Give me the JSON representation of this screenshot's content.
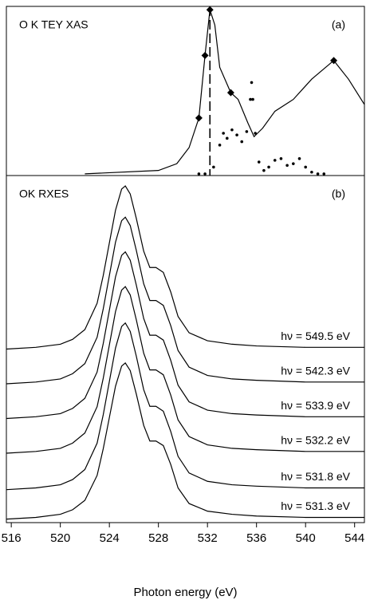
{
  "chart_data": [
    {
      "type": "line",
      "title": "O K TEY XAS",
      "panel_label": "(a)",
      "xlim": [
        515.6,
        544.8
      ],
      "ylim": [
        0,
        10
      ],
      "vline": 532.2,
      "series": [
        {
          "style": "solid",
          "color": "#000000",
          "x": [
            522,
            528,
            529.5,
            530.5,
            531.3,
            531.8,
            532.2,
            532.6,
            533,
            533.9,
            534.5,
            535.3,
            535.8,
            536.5,
            537.5,
            539,
            540.5,
            542.3,
            543.5,
            544.8
          ],
          "values": [
            0.1,
            0.3,
            0.7,
            1.65,
            3.4,
            7.1,
            9.8,
            8.9,
            6.4,
            4.9,
            4.5,
            3.1,
            2.3,
            2.8,
            3.8,
            4.5,
            5.7,
            6.8,
            5.7,
            4.2
          ]
        },
        {
          "style": "dotted",
          "color": "#000000",
          "x": [
            531.3,
            531.8,
            532.5,
            533,
            533.3,
            533.6,
            534,
            534.4,
            534.8,
            535.2,
            535.5,
            535.6,
            535.7,
            535.9,
            536.2,
            536.6,
            537,
            537.5,
            538,
            538.5,
            539,
            539.5,
            540,
            540.5,
            541,
            541.5
          ],
          "values": [
            0.1,
            0.1,
            0.5,
            1.8,
            2.5,
            2.2,
            2.7,
            2.4,
            2.0,
            2.6,
            4.5,
            5.5,
            4.5,
            2.5,
            0.8,
            0.3,
            0.5,
            0.9,
            1.0,
            0.6,
            0.7,
            1.0,
            0.5,
            0.2,
            0.1,
            0.1
          ]
        },
        {
          "style": "markers",
          "color": "#000000",
          "x": [
            531.3,
            531.8,
            532.2,
            533.9,
            542.3
          ],
          "values": [
            3.4,
            7.1,
            9.8,
            4.9,
            6.8
          ]
        }
      ]
    },
    {
      "type": "line",
      "title": "OK RXES",
      "panel_label": "(b)",
      "x_label": "Photon energy (eV)",
      "xlim": [
        515.6,
        544.8
      ],
      "ylim": [
        0,
        10
      ],
      "xticks": [
        516,
        520,
        524,
        528,
        532,
        536,
        540,
        544
      ],
      "x": [
        515.6,
        518,
        520,
        521,
        522,
        523,
        523.5,
        524,
        524.5,
        525,
        525.3,
        525.7,
        526.2,
        526.8,
        527.3,
        527.8,
        528.4,
        529,
        529.6,
        530.5,
        532,
        534,
        536,
        540,
        544.8
      ],
      "series": [
        {
          "name": "hν = 549.5 eV",
          "color": "#000000",
          "values": [
            5.0,
            5.05,
            5.14,
            5.28,
            5.56,
            6.32,
            7.12,
            8.06,
            9.0,
            9.61,
            9.7,
            9.47,
            8.76,
            7.82,
            7.35,
            7.35,
            7.21,
            6.65,
            5.94,
            5.47,
            5.24,
            5.14,
            5.09,
            5.05,
            5.05
          ]
        },
        {
          "name": "hν = 542.3 eV",
          "color": "#000000",
          "values": [
            4.0,
            4.05,
            4.14,
            4.29,
            4.58,
            5.34,
            6.16,
            7.12,
            8.08,
            8.7,
            8.8,
            8.56,
            7.84,
            6.88,
            6.4,
            6.4,
            6.26,
            5.68,
            4.96,
            4.48,
            4.24,
            4.14,
            4.1,
            4.05,
            4.05
          ]
        },
        {
          "name": "hν = 533.9 eV",
          "color": "#000000",
          "values": [
            3.0,
            3.05,
            3.14,
            3.29,
            3.58,
            4.34,
            5.16,
            6.12,
            7.08,
            7.7,
            7.8,
            7.56,
            6.84,
            5.88,
            5.4,
            5.4,
            5.26,
            4.68,
            3.96,
            3.48,
            3.24,
            3.14,
            3.1,
            3.05,
            3.05
          ]
        },
        {
          "name": "hν = 532.2 eV",
          "color": "#000000",
          "values": [
            2.0,
            2.05,
            2.14,
            2.29,
            2.58,
            3.34,
            4.16,
            5.12,
            6.08,
            6.7,
            6.8,
            6.56,
            5.84,
            4.88,
            4.4,
            4.4,
            4.26,
            3.68,
            2.96,
            2.48,
            2.24,
            2.14,
            2.1,
            2.05,
            2.05
          ]
        },
        {
          "name": "hν = 531.8 eV",
          "color": "#000000",
          "values": [
            0.95,
            1.0,
            1.09,
            1.24,
            1.53,
            2.29,
            3.11,
            4.07,
            5.03,
            5.65,
            5.75,
            5.51,
            4.79,
            3.83,
            3.35,
            3.35,
            3.21,
            2.63,
            1.91,
            1.43,
            1.19,
            1.09,
            1.05,
            1.0,
            1.0
          ]
        },
        {
          "name": "hν = 531.3 eV",
          "color": "#000000",
          "values": [
            0.1,
            0.15,
            0.24,
            0.37,
            0.64,
            1.36,
            2.13,
            3.03,
            3.93,
            4.51,
            4.6,
            4.38,
            3.7,
            2.8,
            2.35,
            2.35,
            2.22,
            1.68,
            1.0,
            0.55,
            0.33,
            0.24,
            0.19,
            0.15,
            0.15
          ]
        }
      ]
    }
  ]
}
